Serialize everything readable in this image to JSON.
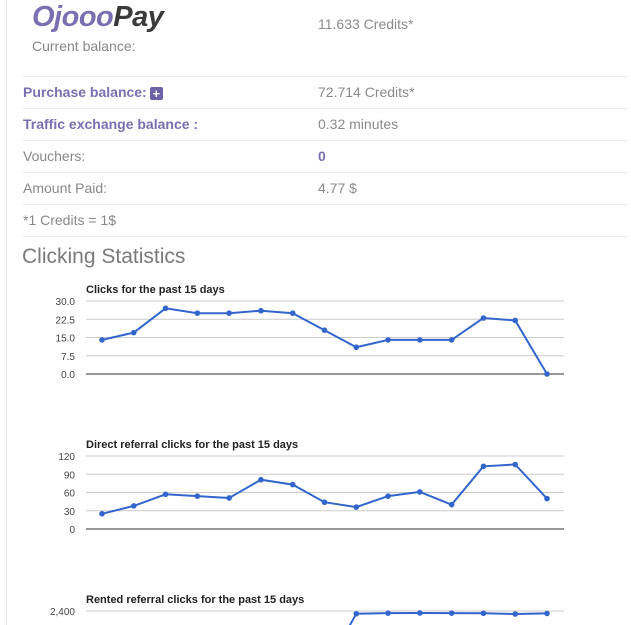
{
  "logo": {
    "part1": "Ojooo",
    "part2": "ay"
  },
  "balances": {
    "current_label": "Current balance:",
    "current_value": "11.633 Credits*",
    "purchase_label": "Purchase balance:",
    "purchase_value": "72.714 Credits*",
    "traffic_label": "Traffic exchange balance :",
    "traffic_value": "0.32 minutes",
    "vouchers_label": "Vouchers:",
    "vouchers_value": "0",
    "amount_paid_label": "Amount Paid:",
    "amount_paid_value": "4.77 $",
    "footnote": "*1 Credits = 1$"
  },
  "stats": {
    "title": "Clicking Statistics"
  },
  "colors": {
    "accent": "#7b6fb2",
    "line": "#3366cc"
  },
  "chart_data": [
    {
      "type": "line",
      "title": "Clicks for the past 15 days",
      "ylim": [
        0,
        30
      ],
      "yticks": [
        "30.0",
        "22.5",
        "15.0",
        "7.5",
        "0.0"
      ],
      "values": [
        14,
        17,
        27,
        25,
        25,
        26,
        25,
        18,
        11,
        14,
        14,
        14,
        23,
        22,
        0
      ]
    },
    {
      "type": "line",
      "title": "Direct referral clicks for the past 15 days",
      "ylim": [
        0,
        120
      ],
      "yticks": [
        "120",
        "90",
        "60",
        "30",
        "0"
      ],
      "values": [
        25,
        38,
        57,
        54,
        51,
        81,
        73,
        44,
        36,
        54,
        61,
        40,
        103,
        106,
        50
      ]
    },
    {
      "type": "line",
      "title": "Rented referral clicks for the past 15 days",
      "ylim": [
        0,
        2400
      ],
      "yticks": [
        "2,400"
      ],
      "values": [
        null,
        null,
        null,
        null,
        null,
        null,
        null,
        null,
        2310,
        2330,
        2335,
        2330,
        2325,
        2300,
        2320
      ]
    }
  ]
}
